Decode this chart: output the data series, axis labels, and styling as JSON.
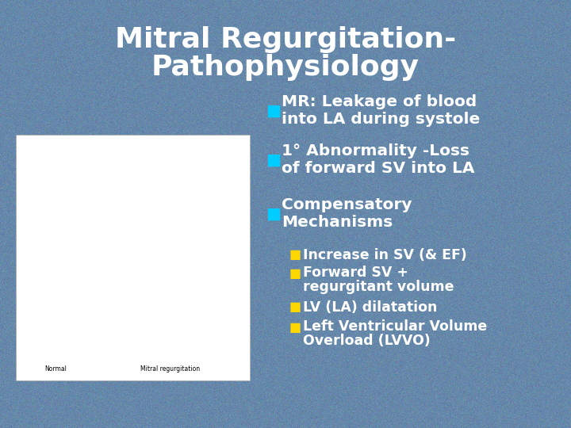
{
  "title_line1": "Mitral Regurgitation-",
  "title_line2": "Pathophysiology",
  "title_color": "#FFFFFF",
  "title_fontsize": 26,
  "background_color": "#6688aa",
  "bullet_color": "#00CCFF",
  "bullet_marker": "■",
  "sub_bullet_color": "#FFD700",
  "bullet1_line1": "MR: Leakage of blood",
  "bullet1_line2": "into LA during systole",
  "bullet2_line1": "1° Abnormality -Loss",
  "bullet2_line2": "of forward SV into LA",
  "bullet3_line1": "Compensatory",
  "bullet3_line2": "Mechanisms",
  "sub_bullets": [
    [
      "Increase in SV (& EF)"
    ],
    [
      "Forward SV +",
      "regurgitant volume"
    ],
    [
      "LV (LA) dilatation"
    ],
    [
      "Left Ventricular Volume",
      "Overload (LVVO)"
    ]
  ],
  "text_color": "#FFFFFF",
  "main_fontsize": 14.5,
  "sub_fontsize": 12.5,
  "image_placeholder": true
}
